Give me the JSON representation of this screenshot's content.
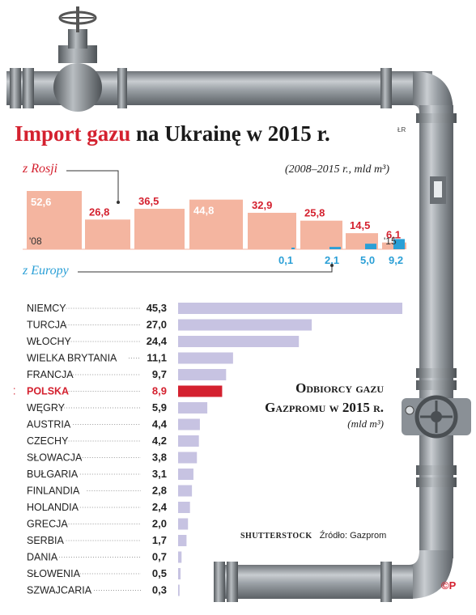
{
  "header": {
    "title_red": "Import gazu",
    "title_rest": "na Ukrainę w 2015 r.",
    "credit_top": "ŁR"
  },
  "colors": {
    "russia": "#f4b5a0",
    "europe": "#2a9fd6",
    "country_bar": "#c7c3e2",
    "highlight": "#d4212f",
    "pipe": "#8f959b"
  },
  "chart_data": [
    {
      "type": "bar",
      "subtitle": "(2008–2015 r., mld m³)",
      "categories": [
        "2008",
        "2009",
        "2010",
        "2011",
        "2012",
        "2013",
        "2014",
        "2015"
      ],
      "tick_labels": {
        "first": "'08",
        "last": "'15"
      },
      "series": [
        {
          "name": "z Rosji",
          "values": [
            52.6,
            26.8,
            36.5,
            44.8,
            32.9,
            25.8,
            14.5,
            6.1
          ],
          "labels": [
            "52,6",
            "26,8",
            "36,5",
            "44,8",
            "32,9",
            "25,8",
            "14,5",
            "6,1"
          ]
        },
        {
          "name": "z Europy",
          "values": [
            null,
            null,
            null,
            null,
            0.1,
            2.1,
            5.0,
            9.2
          ],
          "labels": [
            "",
            "",
            "",
            "",
            "0,1",
            "2,1",
            "5,0",
            "9,2"
          ]
        }
      ],
      "ylim": [
        0,
        52.6
      ]
    },
    {
      "type": "bar",
      "orientation": "horizontal",
      "title": "Odbiorcy gazu Gazpromu w 2015 r.",
      "unit": "(mld m³)",
      "highlight": "POLSKA",
      "categories": [
        "NIEMCY",
        "TURCJA",
        "WŁOCHY",
        "WIELKA BRYTANIA",
        "FRANCJA",
        "POLSKA",
        "WĘGRY",
        "AUSTRIA",
        "CZECHY",
        "SŁOWACJA",
        "BUŁGARIA",
        "FINLANDIA",
        "HOLANDIA",
        "GRECJA",
        "SERBIA",
        "DANIA",
        "SŁOWENIA",
        "SZWAJCARIA"
      ],
      "values": [
        45.3,
        27.0,
        24.4,
        11.1,
        9.7,
        8.9,
        5.9,
        4.4,
        4.2,
        3.8,
        3.1,
        2.8,
        2.4,
        2.0,
        1.7,
        0.7,
        0.5,
        0.3
      ],
      "value_labels": [
        "45,3",
        "27,0",
        "24,4",
        "11,1",
        "9,7",
        "8,9",
        "5,9",
        "4,4",
        "4,2",
        "3,8",
        "3,1",
        "2,8",
        "2,4",
        "2,0",
        "1,7",
        "0,7",
        "0,5",
        "0,3"
      ],
      "xlim": [
        0,
        45.3
      ]
    }
  ],
  "footer": {
    "photo_credit": "SHUTTERSTOCK",
    "source": "Źródło: Gazprom",
    "copyright": "©P"
  }
}
